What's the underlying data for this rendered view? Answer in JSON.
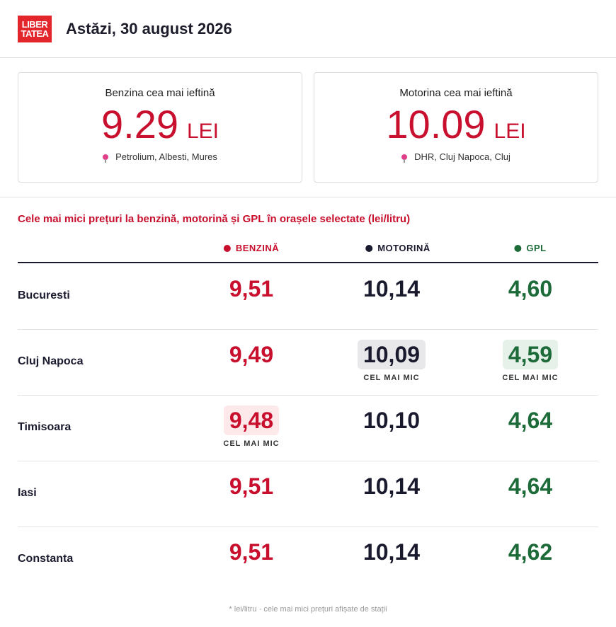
{
  "header": {
    "logo_line1": "LIBER",
    "logo_line2": "TATEA",
    "date": "Astăzi, 30 august 2026"
  },
  "cards": [
    {
      "label": "Benzina cea mai ieftină",
      "price": "9.29",
      "unit": "LEI",
      "location": "Petrolium, Albesti, Mures"
    },
    {
      "label": "Motorina cea mai ieftină",
      "price": "10.09",
      "unit": "LEI",
      "location": "DHR, Cluj Napoca, Cluj"
    }
  ],
  "section_title": "Cele mai mici prețuri la benzină, motorină și GPL în orașele selectate (lei/litru)",
  "columns": {
    "benzina": "BENZINĂ",
    "motorina": "MOTORINĂ",
    "gpl": "GPL"
  },
  "colors": {
    "benzina": "#c8102e",
    "motorina": "#1a1a2e",
    "gpl": "#1e6b3a",
    "brand": "#e3262b"
  },
  "badge_label": "CEL MAI MIC",
  "rows": [
    {
      "city": "Bucuresti",
      "benzina": "9,51",
      "motorina": "10,14",
      "gpl": "4,60"
    },
    {
      "city": "Cluj Napoca",
      "benzina": "9,49",
      "motorina": "10,09",
      "gpl": "4,59"
    },
    {
      "city": "Timisoara",
      "benzina": "9,48",
      "motorina": "10,10",
      "gpl": "4,64"
    },
    {
      "city": "Iasi",
      "benzina": "9,51",
      "motorina": "10,14",
      "gpl": "4,64"
    },
    {
      "city": "Constanta",
      "benzina": "9,51",
      "motorina": "10,14",
      "gpl": "4,62"
    }
  ],
  "footnote": "* lei/litru · cele mai mici prețuri afișate de stații"
}
